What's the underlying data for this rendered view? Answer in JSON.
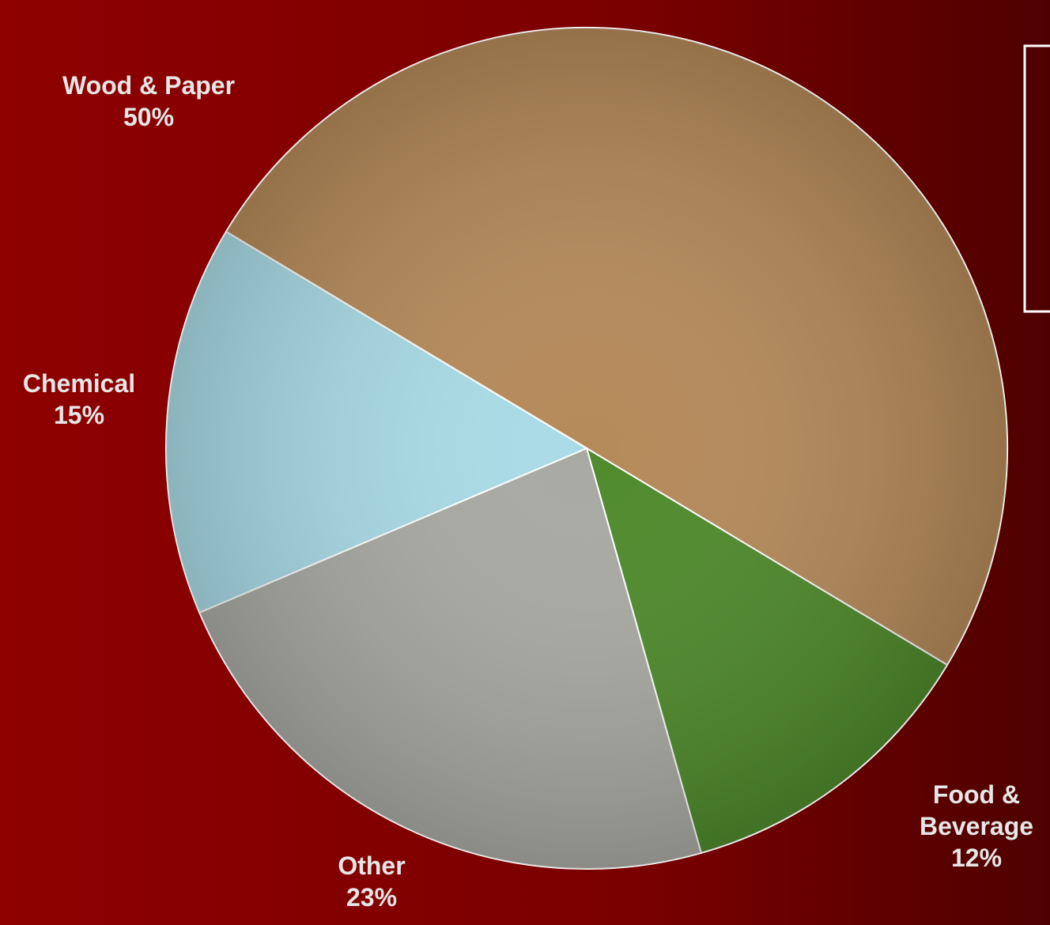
{
  "chart_data": {
    "type": "pie",
    "categories": [
      "Wood & Paper",
      "Food & Beverage",
      "Other",
      "Chemical"
    ],
    "values": [
      50,
      12,
      23,
      15
    ],
    "value_labels": [
      "50%",
      "12%",
      "23%",
      "15%"
    ],
    "colors": [
      "#b58a5a",
      "#4f8a2c",
      "#a9a9a4",
      "#a9dbe6"
    ]
  }
}
